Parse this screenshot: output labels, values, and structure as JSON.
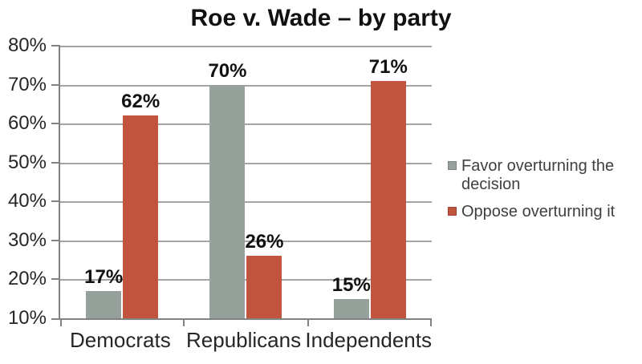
{
  "chart_data": {
    "type": "bar",
    "title": "Roe v. Wade – by party",
    "categories": [
      "Democrats",
      "Republicans",
      "Independents"
    ],
    "series": [
      {
        "name": "Favor overturning the decision",
        "color": "#97A19B",
        "values": [
          17,
          70,
          15
        ]
      },
      {
        "name": "Oppose overturning it",
        "color": "#C0543F",
        "values": [
          62,
          26,
          71
        ]
      }
    ],
    "y_axis": {
      "min": 10,
      "max": 80,
      "step": 10,
      "unit": "%"
    },
    "ylim": [
      10,
      80
    ],
    "grid": true,
    "legend_position": "right",
    "data_labels": true,
    "data_label_unit": "%"
  },
  "colors": {
    "background": "#FFFFFF",
    "axis": "#828282",
    "gridline": "#A5A5A5",
    "favor_bar": "#97A19B",
    "oppose_bar": "#C0543F",
    "title_text": "#111111",
    "axis_text": "#262626",
    "legend_text": "#3F3F3F"
  }
}
